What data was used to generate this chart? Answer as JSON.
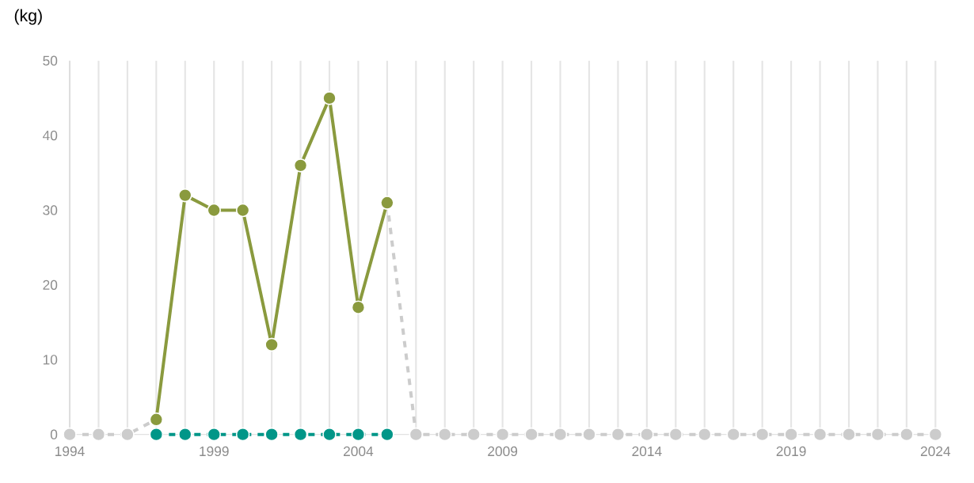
{
  "chart_data": {
    "type": "line",
    "ylabel": "(kg)",
    "x": [
      1994,
      1995,
      1996,
      1997,
      1998,
      1999,
      2000,
      2001,
      2002,
      2003,
      2004,
      2005,
      2006,
      2007,
      2008,
      2009,
      2010,
      2011,
      2012,
      2013,
      2014,
      2015,
      2016,
      2017,
      2018,
      2019,
      2020,
      2021,
      2022,
      2023,
      2024
    ],
    "series": [
      {
        "color": "#cccccc",
        "line_style": "dashed",
        "values": [
          0,
          0,
          0,
          2,
          null,
          null,
          null,
          null,
          null,
          null,
          null,
          31,
          0,
          0,
          0,
          0,
          0,
          0,
          0,
          0,
          0,
          0,
          0,
          0,
          0,
          0,
          0,
          0,
          0,
          0,
          0
        ]
      },
      {
        "color": "#009688",
        "line_style": "dashed",
        "values": [
          null,
          null,
          null,
          0,
          0,
          0,
          0,
          0,
          0,
          0,
          0,
          0,
          null,
          null,
          null,
          null,
          null,
          null,
          null,
          null,
          null,
          null,
          null,
          null,
          null,
          null,
          null,
          null,
          null,
          null,
          null
        ]
      },
      {
        "color": "#8a9a3e",
        "line_style": "solid",
        "values": [
          null,
          null,
          null,
          2,
          32,
          30,
          30,
          12,
          36,
          45,
          17,
          31,
          null,
          null,
          null,
          null,
          null,
          null,
          null,
          null,
          null,
          null,
          null,
          null,
          null,
          null,
          null,
          null,
          null,
          null,
          null
        ]
      }
    ],
    "xlim": [
      1994,
      2024
    ],
    "xticks": [
      1994,
      {
        "value": 1995,
        "label": null
      },
      {
        "value": 1996,
        "label": null
      },
      {
        "value": 1997,
        "label": null
      },
      {
        "value": 1998,
        "label": null
      },
      1999,
      {
        "value": 2000,
        "label": null
      },
      {
        "value": 2001,
        "label": null
      },
      {
        "value": 2002,
        "label": null
      },
      {
        "value": 2003,
        "label": null
      },
      2004,
      {
        "value": 2005,
        "label": null
      },
      {
        "value": 2006,
        "label": null
      },
      {
        "value": 2007,
        "label": null
      },
      {
        "value": 2008,
        "label": null
      },
      2009,
      {
        "value": 2010,
        "label": null
      },
      {
        "value": 2011,
        "label": null
      },
      {
        "value": 2012,
        "label": null
      },
      {
        "value": 2013,
        "label": null
      },
      2014,
      {
        "value": 2015,
        "label": null
      },
      {
        "value": 2016,
        "label": null
      },
      {
        "value": 2017,
        "label": null
      },
      {
        "value": 2018,
        "label": null
      },
      2019,
      {
        "value": 2020,
        "label": null
      },
      {
        "value": 2021,
        "label": null
      },
      {
        "value": 2022,
        "label": null
      },
      {
        "value": 2023,
        "label": null
      },
      2024
    ],
    "ylim": [
      0,
      50
    ],
    "yticks": [
      0,
      10,
      20,
      30,
      40,
      50
    ],
    "grid": "x",
    "marker": "circle"
  }
}
